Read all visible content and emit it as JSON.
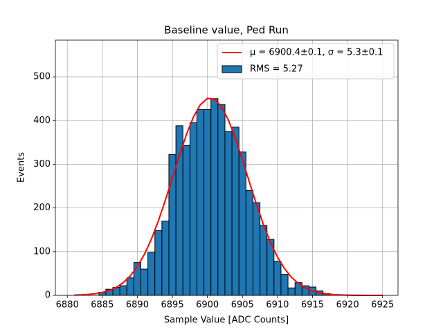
{
  "chart_data": {
    "type": "histogram",
    "title": "Baseline value, Ped Run",
    "xlabel": "Sample Value [ADC Counts]",
    "ylabel": "Events",
    "xlim": [
      6878.3,
      6927.2
    ],
    "ylim": [
      0,
      584
    ],
    "xticks": [
      6880,
      6885,
      6890,
      6895,
      6900,
      6905,
      6910,
      6915,
      6920,
      6925
    ],
    "yticks": [
      0,
      100,
      200,
      300,
      400,
      500
    ],
    "grid": true,
    "legend": "upper right",
    "series": [
      {
        "name": "μ = 6900.4±0.1, σ = 5.3±0.1",
        "type": "line",
        "color": "#ff0000",
        "x": [
          6881,
          6882,
          6883,
          6884,
          6885,
          6886,
          6887,
          6888,
          6889,
          6890,
          6891,
          6892,
          6893,
          6894,
          6895,
          6896,
          6897,
          6898,
          6899,
          6900,
          6901,
          6902,
          6903,
          6904,
          6905,
          6906,
          6907,
          6908,
          6909,
          6910,
          6911,
          6912,
          6913,
          6914,
          6915,
          6916,
          6917,
          6918,
          6919,
          6920,
          6921,
          6922,
          6923,
          6924,
          6925
        ],
        "values": [
          0.6,
          1.1,
          2.1,
          3.8,
          6.6,
          11.3,
          18.5,
          29.3,
          44.7,
          65.9,
          93.8,
          128.7,
          170.5,
          218.1,
          269.0,
          320.2,
          367.9,
          408.0,
          436.5,
          450.7,
          449.1,
          431.9,
          400.7,
          358.9,
          310.2,
          258.7,
          208.2,
          161.7,
          121.2,
          87.6,
          61.2,
          41.2,
          26.8,
          16.8,
          10.2,
          5.9,
          3.3,
          1.8,
          1.0,
          0.5,
          0.2,
          0.1,
          0,
          0,
          0
        ]
      },
      {
        "name": "RMS = 5.27",
        "type": "histogram",
        "color": "#1f77b4",
        "edgecolor": "#000000",
        "bins": [
          6884.5,
          6885.5,
          6886.5,
          6887.5,
          6888.5,
          6889.5,
          6890.5,
          6891.5,
          6892.5,
          6893.5,
          6894.5,
          6895.5,
          6896.5,
          6897.5,
          6898.5,
          6899.5,
          6900.5,
          6901.5,
          6902.5,
          6903.5,
          6904.5,
          6905.5,
          6906.5,
          6907.5,
          6908.5,
          6909.5,
          6910.5,
          6911.5,
          6912.5,
          6913.5,
          6914.5,
          6915.5,
          6916.5,
          6917.5
        ],
        "values": [
          7,
          14,
          18,
          22,
          40,
          75,
          60,
          98,
          148,
          170,
          322,
          388,
          343,
          395,
          425,
          425,
          450,
          437,
          375,
          385,
          328,
          240,
          212,
          160,
          128,
          78,
          48,
          17,
          29,
          22,
          19,
          10,
          4
        ]
      }
    ]
  }
}
